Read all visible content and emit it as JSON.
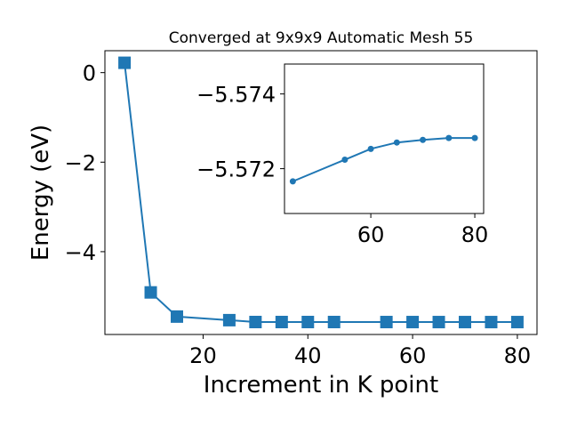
{
  "chart_data": [
    {
      "type": "line",
      "title": "Converged at 9x9x9 Automatic Mesh 55",
      "x_label": "Increment in K point",
      "y_label": "Energy (eV)",
      "x": [
        5,
        10,
        15,
        25,
        30,
        35,
        40,
        45,
        55,
        60,
        65,
        70,
        75,
        80
      ],
      "values": [
        0.22,
        -4.91,
        -5.45,
        -5.53,
        -5.5717,
        -5.5717,
        -5.5717,
        -5.5717,
        -5.5722,
        -5.5725,
        -5.5727,
        -5.5728,
        -5.5728,
        -5.5728
      ],
      "color": "#1f77b4",
      "marker": "square",
      "xlim": [
        1.25,
        83.75
      ],
      "xticks": [
        20,
        40,
        60,
        80
      ],
      "ylim": [
        -5.85,
        0.49
      ],
      "yticks": [
        0,
        {
          "value": -2,
          "label": "−2"
        },
        {
          "value": -4,
          "label": "−4"
        }
      ]
    },
    {
      "type": "line",
      "x": [
        45,
        55,
        60,
        65,
        70,
        75,
        80
      ],
      "values": [
        -5.57166,
        -5.57224,
        -5.57253,
        -5.5727,
        -5.57277,
        -5.57282,
        -5.57282
      ],
      "color": "#1f77b4",
      "marker": "circle",
      "xlim": [
        43.4,
        81.7
      ],
      "xticks": [
        60,
        80
      ],
      "ylim": [
        -5.5708,
        -5.5748
      ],
      "yticks": [
        {
          "value": -5.574,
          "label": "−5.574"
        },
        {
          "value": -5.572,
          "label": "−5.572"
        }
      ]
    }
  ]
}
